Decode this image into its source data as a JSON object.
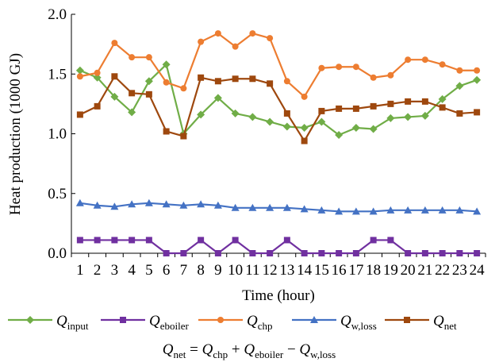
{
  "chart_data": {
    "type": "line",
    "xlabel": "Time (hour)",
    "ylabel": "Heat production (1000 GJ)",
    "ylim": [
      0,
      2.0
    ],
    "yticks": [
      "0.0",
      "0.5",
      "1.0",
      "1.5",
      "2.0"
    ],
    "x": [
      1,
      2,
      3,
      4,
      5,
      6,
      7,
      8,
      9,
      10,
      11,
      12,
      13,
      14,
      15,
      16,
      17,
      18,
      19,
      20,
      21,
      22,
      23,
      24
    ],
    "grid": false,
    "legend_position": "bottom",
    "series": [
      {
        "name": "Q_input",
        "label_main": "Q",
        "label_sub": "input",
        "color": "#70ad47",
        "marker": "diamond",
        "values": [
          1.53,
          1.47,
          1.31,
          1.18,
          1.44,
          1.58,
          1.0,
          1.16,
          1.3,
          1.17,
          1.14,
          1.1,
          1.06,
          1.05,
          1.1,
          0.99,
          1.05,
          1.04,
          1.13,
          1.14,
          1.15,
          1.29,
          1.4,
          1.45
        ]
      },
      {
        "name": "Q_eboiler",
        "label_main": "Q",
        "label_sub": "eboiler",
        "color": "#7030a0",
        "marker": "square",
        "values": [
          0.11,
          0.11,
          0.11,
          0.11,
          0.11,
          0,
          0,
          0.11,
          0,
          0.11,
          0,
          0,
          0.11,
          0,
          0,
          0,
          0,
          0.11,
          0.11,
          0,
          0,
          0,
          0,
          0
        ]
      },
      {
        "name": "Q_chp",
        "label_main": "Q",
        "label_sub": "chp",
        "color": "#ed7d31",
        "marker": "circle",
        "values": [
          1.48,
          1.51,
          1.76,
          1.64,
          1.64,
          1.43,
          1.38,
          1.77,
          1.84,
          1.73,
          1.84,
          1.8,
          1.44,
          1.31,
          1.55,
          1.56,
          1.56,
          1.47,
          1.49,
          1.62,
          1.62,
          1.58,
          1.53,
          1.53
        ]
      },
      {
        "name": "Q_w,loss",
        "label_main": "Q",
        "label_sub": "w,loss",
        "color": "#4472c4",
        "marker": "triangle",
        "values": [
          0.42,
          0.4,
          0.39,
          0.41,
          0.42,
          0.41,
          0.4,
          0.41,
          0.4,
          0.38,
          0.38,
          0.38,
          0.38,
          0.37,
          0.36,
          0.35,
          0.35,
          0.35,
          0.36,
          0.36,
          0.36,
          0.36,
          0.36,
          0.35
        ]
      },
      {
        "name": "Q_net",
        "label_main": "Q",
        "label_sub": "net",
        "color": "#9e480e",
        "marker": "square",
        "values": [
          1.16,
          1.23,
          1.48,
          1.34,
          1.33,
          1.02,
          0.98,
          1.47,
          1.44,
          1.46,
          1.46,
          1.42,
          1.17,
          0.94,
          1.19,
          1.21,
          1.21,
          1.23,
          1.25,
          1.27,
          1.27,
          1.22,
          1.17,
          1.18
        ]
      }
    ],
    "formula": {
      "lhs": {
        "main": "Q",
        "sub": "net"
      },
      "eq": " = ",
      "t1": {
        "main": "Q",
        "sub": "chp"
      },
      "op1": " + ",
      "t2": {
        "main": "Q",
        "sub": "eboiler"
      },
      "op2": " − ",
      "t3": {
        "main": "Q",
        "sub": "w,loss"
      }
    }
  }
}
